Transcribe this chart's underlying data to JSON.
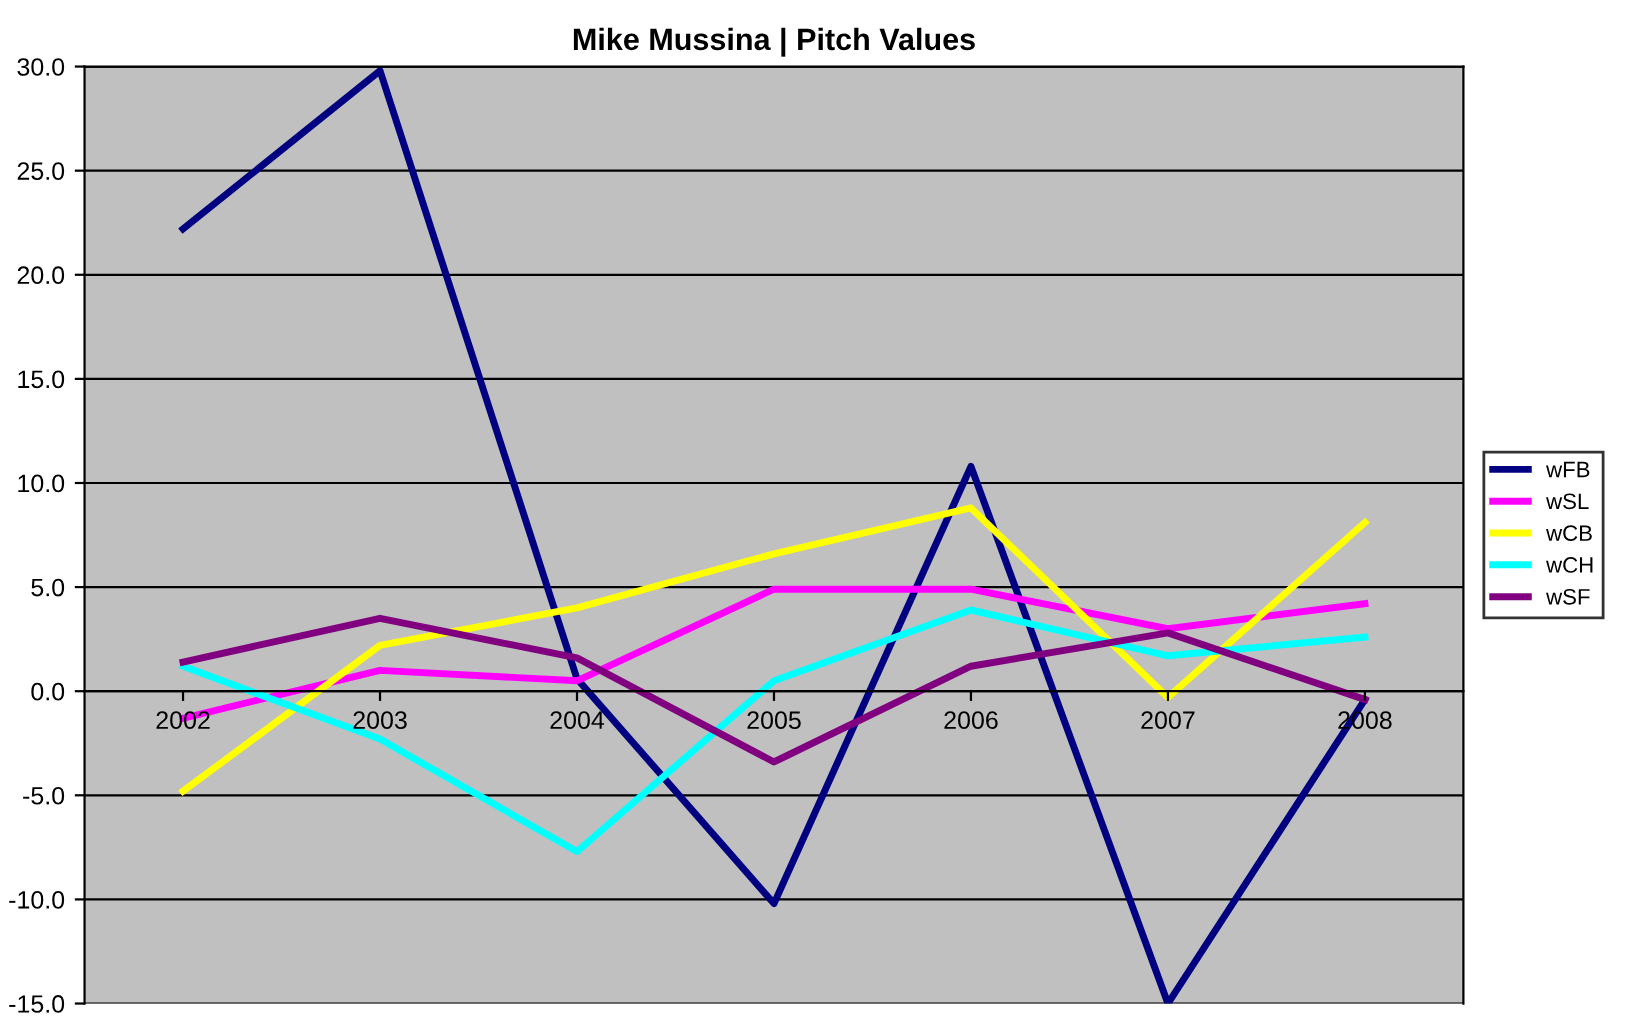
{
  "chart_data": {
    "type": "line",
    "title": "Mike Mussina | Pitch Values",
    "categories": [
      "2002",
      "2003",
      "2004",
      "2005",
      "2006",
      "2007",
      "2008"
    ],
    "series": [
      {
        "name": "wFB",
        "color": "#000080",
        "values": [
          22.2,
          29.8,
          0.6,
          -10.2,
          10.8,
          -15.0,
          -0.4
        ]
      },
      {
        "name": "wSL",
        "color": "#ff00ff",
        "values": [
          -1.3,
          1.0,
          0.5,
          4.9,
          4.9,
          3.0,
          4.2
        ]
      },
      {
        "name": "wCB",
        "color": "#ffff00",
        "values": [
          -4.8,
          2.2,
          4.0,
          6.6,
          8.8,
          -0.3,
          8.1
        ]
      },
      {
        "name": "wCH",
        "color": "#00ffff",
        "values": [
          1.2,
          -2.3,
          -7.7,
          0.5,
          3.9,
          1.7,
          2.6
        ]
      },
      {
        "name": "wSF",
        "color": "#800080",
        "values": [
          1.4,
          3.5,
          1.6,
          -3.4,
          1.2,
          2.8,
          -0.4
        ]
      }
    ],
    "ylim": [
      -15,
      30
    ],
    "yticks": [
      {
        "value": -15,
        "label": "-15.0"
      },
      {
        "value": -10,
        "label": "-10.0"
      },
      {
        "value": -5,
        "label": "-5.0"
      },
      {
        "value": 0,
        "label": "0.0"
      },
      {
        "value": 5,
        "label": "5.0"
      },
      {
        "value": 10,
        "label": "10.0"
      },
      {
        "value": 15,
        "label": "15.0"
      },
      {
        "value": 20,
        "label": "20.0"
      },
      {
        "value": 25,
        "label": "25.0"
      },
      {
        "value": 30,
        "label": "30.0"
      }
    ],
    "grid": "y",
    "legend": "right",
    "marker": "none",
    "line_style": "solid"
  }
}
